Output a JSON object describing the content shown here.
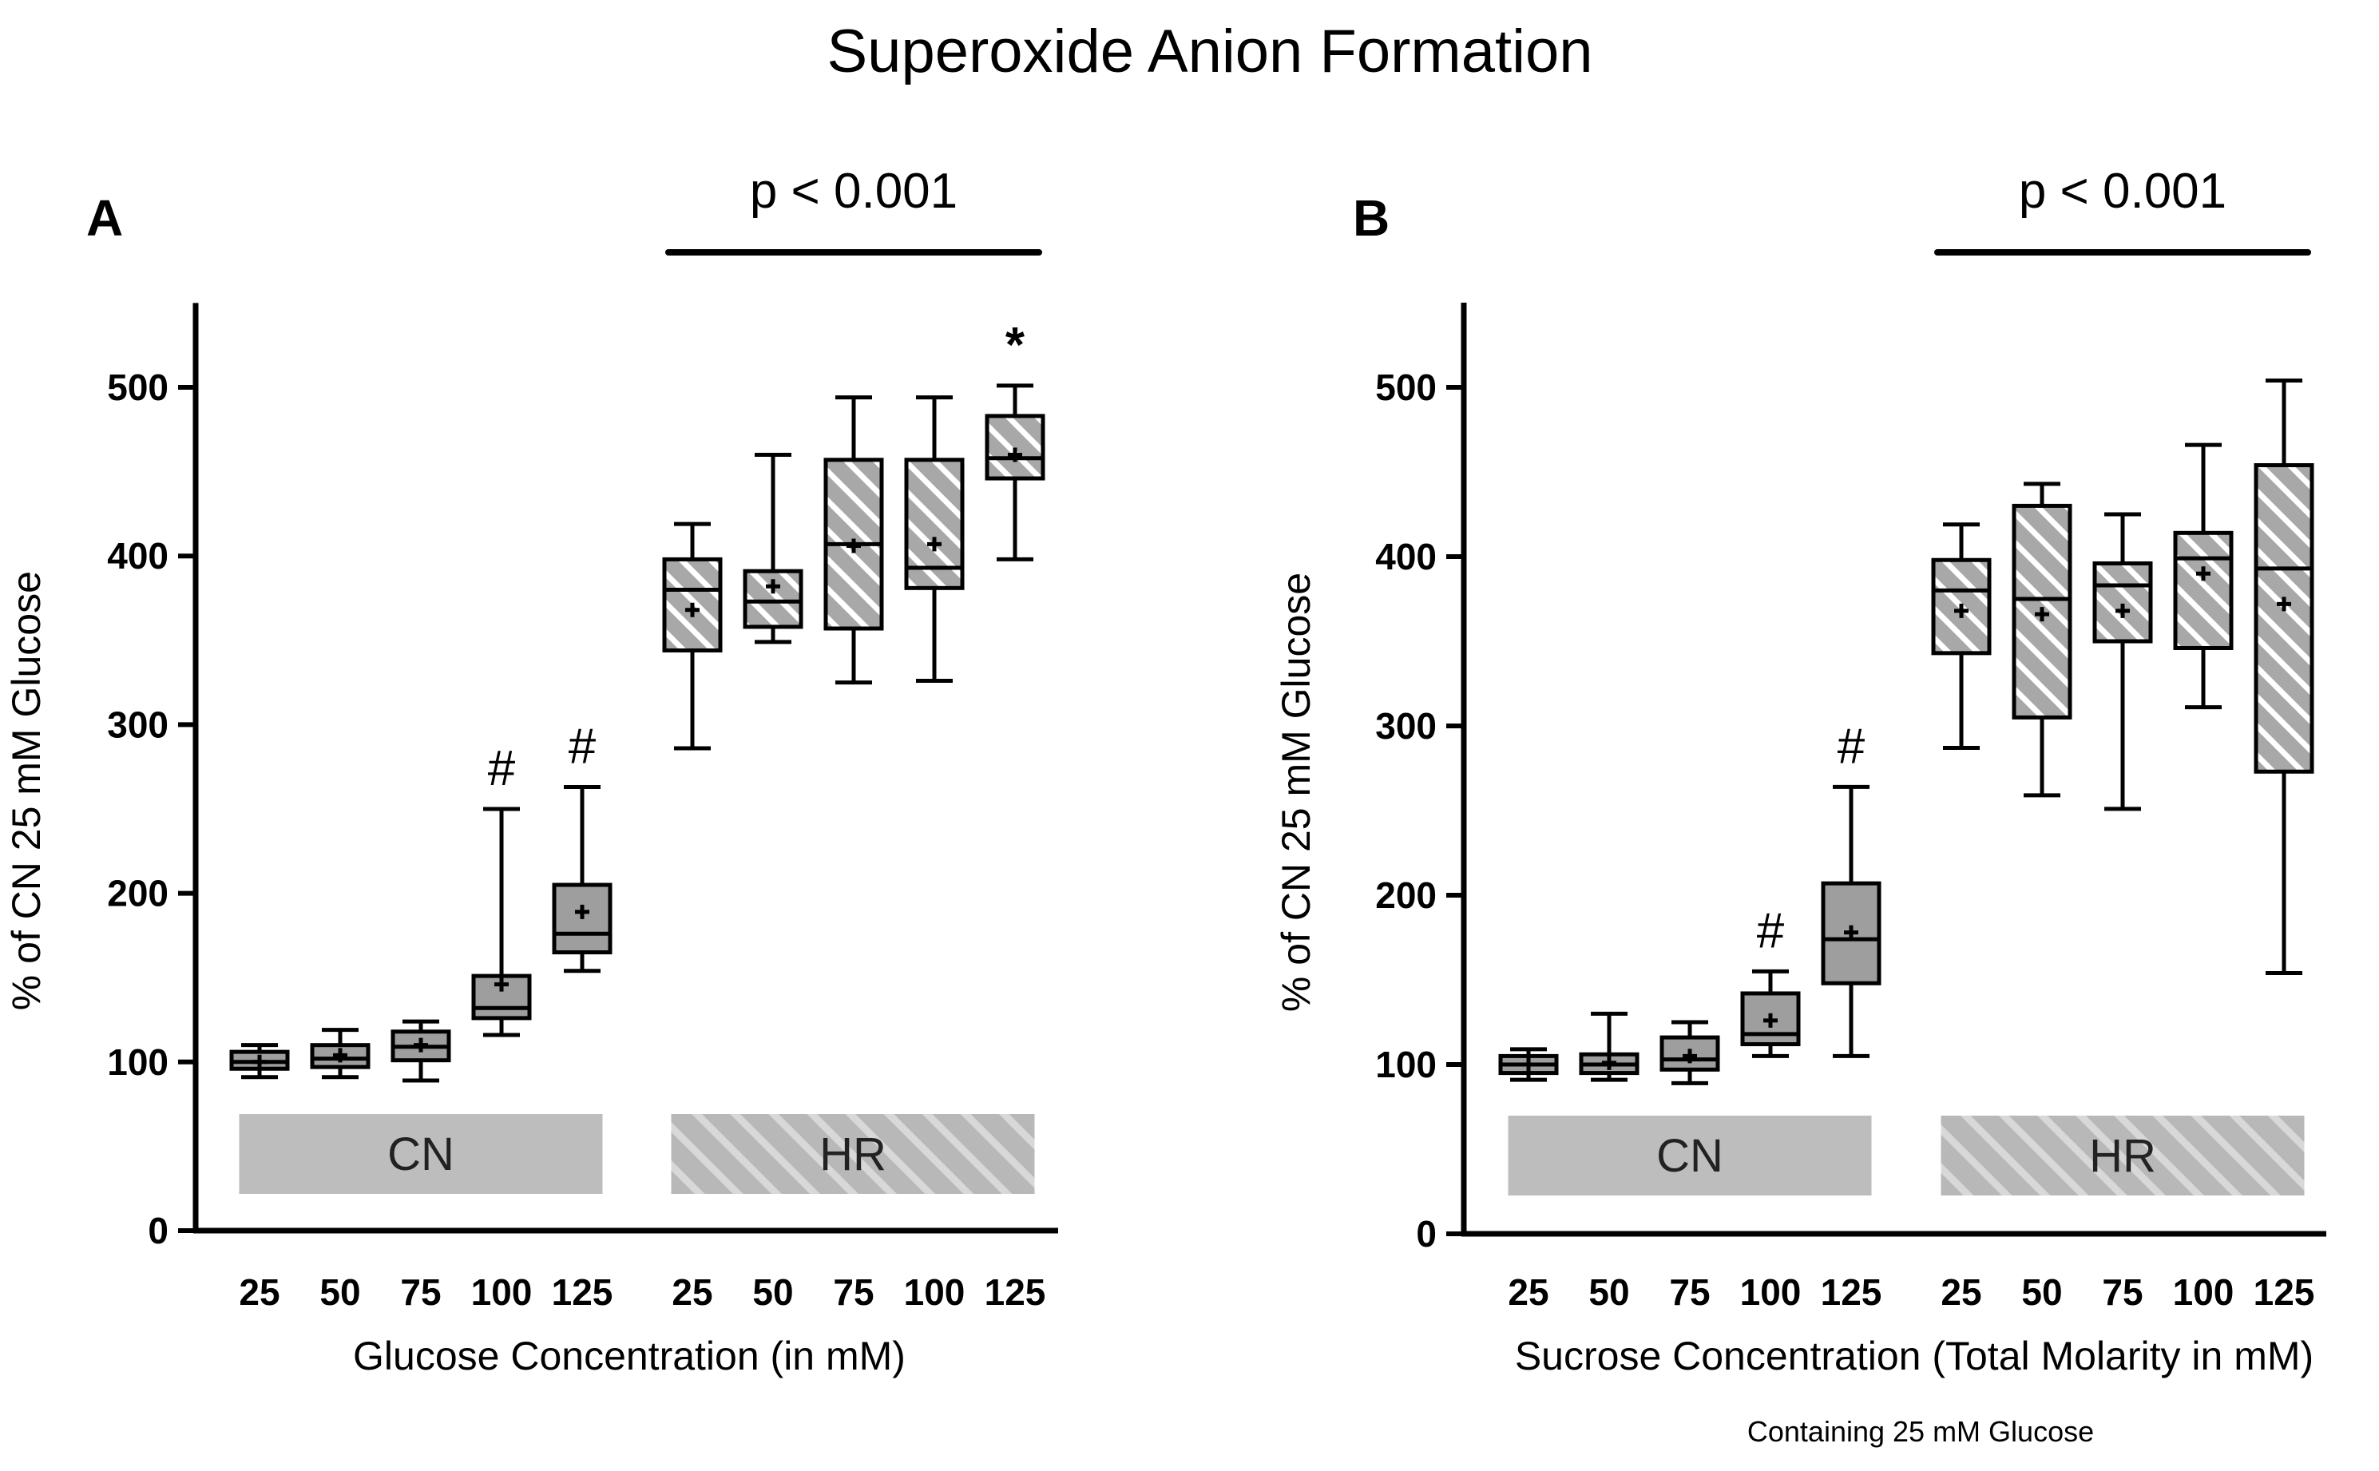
{
  "title": "Superoxide Anion Formation",
  "note": "Containing 25 mM Glucose",
  "colors": {
    "cn_fill": "#9e9e9e",
    "hr_fill": "#a8a8a8",
    "hatch_line": "#ffffff",
    "band_fill": "#bdbdbd",
    "stroke": "#000000"
  },
  "chart_data": [
    {
      "panel": "A",
      "type": "box",
      "title": "",
      "xlabel": "Glucose Concentration (in mM)",
      "ylabel": "% of CN 25 mM Glucose",
      "ylim": [
        0,
        550
      ],
      "yticks": [
        0,
        100,
        200,
        300,
        400,
        500
      ],
      "categories": [
        "25",
        "50",
        "75",
        "100",
        "125",
        "25",
        "50",
        "75",
        "100",
        "125"
      ],
      "groups": [
        {
          "name": "CN",
          "style": "solid",
          "indices": [
            0,
            1,
            2,
            3,
            4
          ]
        },
        {
          "name": "HR",
          "style": "hatched",
          "indices": [
            5,
            6,
            7,
            8,
            9
          ]
        }
      ],
      "bracket": {
        "label": "p < 0.001",
        "from": 5,
        "to": 9
      },
      "boxes": [
        {
          "min": 91,
          "q1": 96,
          "median": 100,
          "q3": 106,
          "max": 110,
          "mean": 100,
          "group": "CN",
          "marker": ""
        },
        {
          "min": 91,
          "q1": 97,
          "median": 102,
          "q3": 110,
          "max": 119,
          "mean": 104,
          "group": "CN",
          "marker": ""
        },
        {
          "min": 89,
          "q1": 101,
          "median": 109,
          "q3": 118,
          "max": 124,
          "mean": 110,
          "group": "CN",
          "marker": ""
        },
        {
          "min": 116,
          "q1": 126,
          "median": 132,
          "q3": 151,
          "max": 250,
          "mean": 146,
          "group": "CN",
          "marker": "#"
        },
        {
          "min": 154,
          "q1": 165,
          "median": 176,
          "q3": 205,
          "max": 263,
          "mean": 189,
          "group": "CN",
          "marker": "#"
        },
        {
          "min": 286,
          "q1": 344,
          "median": 380,
          "q3": 398,
          "max": 419,
          "mean": 368,
          "group": "HR",
          "marker": ""
        },
        {
          "min": 349,
          "q1": 358,
          "median": 373,
          "q3": 391,
          "max": 460,
          "mean": 382,
          "group": "HR",
          "marker": ""
        },
        {
          "min": 325,
          "q1": 357,
          "median": 407,
          "q3": 457,
          "max": 494,
          "mean": 406,
          "group": "HR",
          "marker": ""
        },
        {
          "min": 326,
          "q1": 381,
          "median": 393,
          "q3": 457,
          "max": 494,
          "mean": 407,
          "group": "HR",
          "marker": ""
        },
        {
          "min": 398,
          "q1": 446,
          "median": 458,
          "q3": 483,
          "max": 501,
          "mean": 460,
          "group": "HR",
          "marker": "*"
        }
      ]
    },
    {
      "panel": "B",
      "type": "box",
      "title": "",
      "xlabel": "Sucrose Concentration (Total Molarity in mM)",
      "ylabel": "% of CN 25 mM Glucose",
      "ylim": [
        0,
        550
      ],
      "yticks": [
        0,
        100,
        200,
        300,
        400,
        500
      ],
      "categories": [
        "25",
        "50",
        "75",
        "100",
        "125",
        "25",
        "50",
        "75",
        "100",
        "125"
      ],
      "groups": [
        {
          "name": "CN",
          "style": "solid",
          "indices": [
            0,
            1,
            2,
            3,
            4
          ]
        },
        {
          "name": "HR",
          "style": "hatched",
          "indices": [
            5,
            6,
            7,
            8,
            9
          ]
        }
      ],
      "bracket": {
        "label": "p < 0.001",
        "from": 5,
        "to": 9
      },
      "boxes": [
        {
          "min": 91,
          "q1": 95,
          "median": 100,
          "q3": 105,
          "max": 109,
          "mean": 100,
          "group": "CN",
          "marker": ""
        },
        {
          "min": 91,
          "q1": 95,
          "median": 100,
          "q3": 106,
          "max": 130,
          "mean": 101,
          "group": "CN",
          "marker": ""
        },
        {
          "min": 89,
          "q1": 97,
          "median": 103,
          "q3": 116,
          "max": 125,
          "mean": 105,
          "group": "CN",
          "marker": ""
        },
        {
          "min": 105,
          "q1": 112,
          "median": 118,
          "q3": 142,
          "max": 155,
          "mean": 126,
          "group": "CN",
          "marker": "#"
        },
        {
          "min": 105,
          "q1": 148,
          "median": 174,
          "q3": 207,
          "max": 264,
          "mean": 178,
          "group": "CN",
          "marker": "#"
        },
        {
          "min": 287,
          "q1": 343,
          "median": 380,
          "q3": 398,
          "max": 419,
          "mean": 368,
          "group": "HR",
          "marker": ""
        },
        {
          "min": 259,
          "q1": 305,
          "median": 375,
          "q3": 430,
          "max": 443,
          "mean": 366,
          "group": "HR",
          "marker": ""
        },
        {
          "min": 251,
          "q1": 350,
          "median": 383,
          "q3": 396,
          "max": 425,
          "mean": 368,
          "group": "HR",
          "marker": ""
        },
        {
          "min": 311,
          "q1": 346,
          "median": 399,
          "q3": 414,
          "max": 466,
          "mean": 390,
          "group": "HR",
          "marker": ""
        },
        {
          "min": 154,
          "q1": 273,
          "median": 393,
          "q3": 454,
          "max": 504,
          "mean": 372,
          "group": "HR",
          "marker": ""
        }
      ]
    }
  ]
}
